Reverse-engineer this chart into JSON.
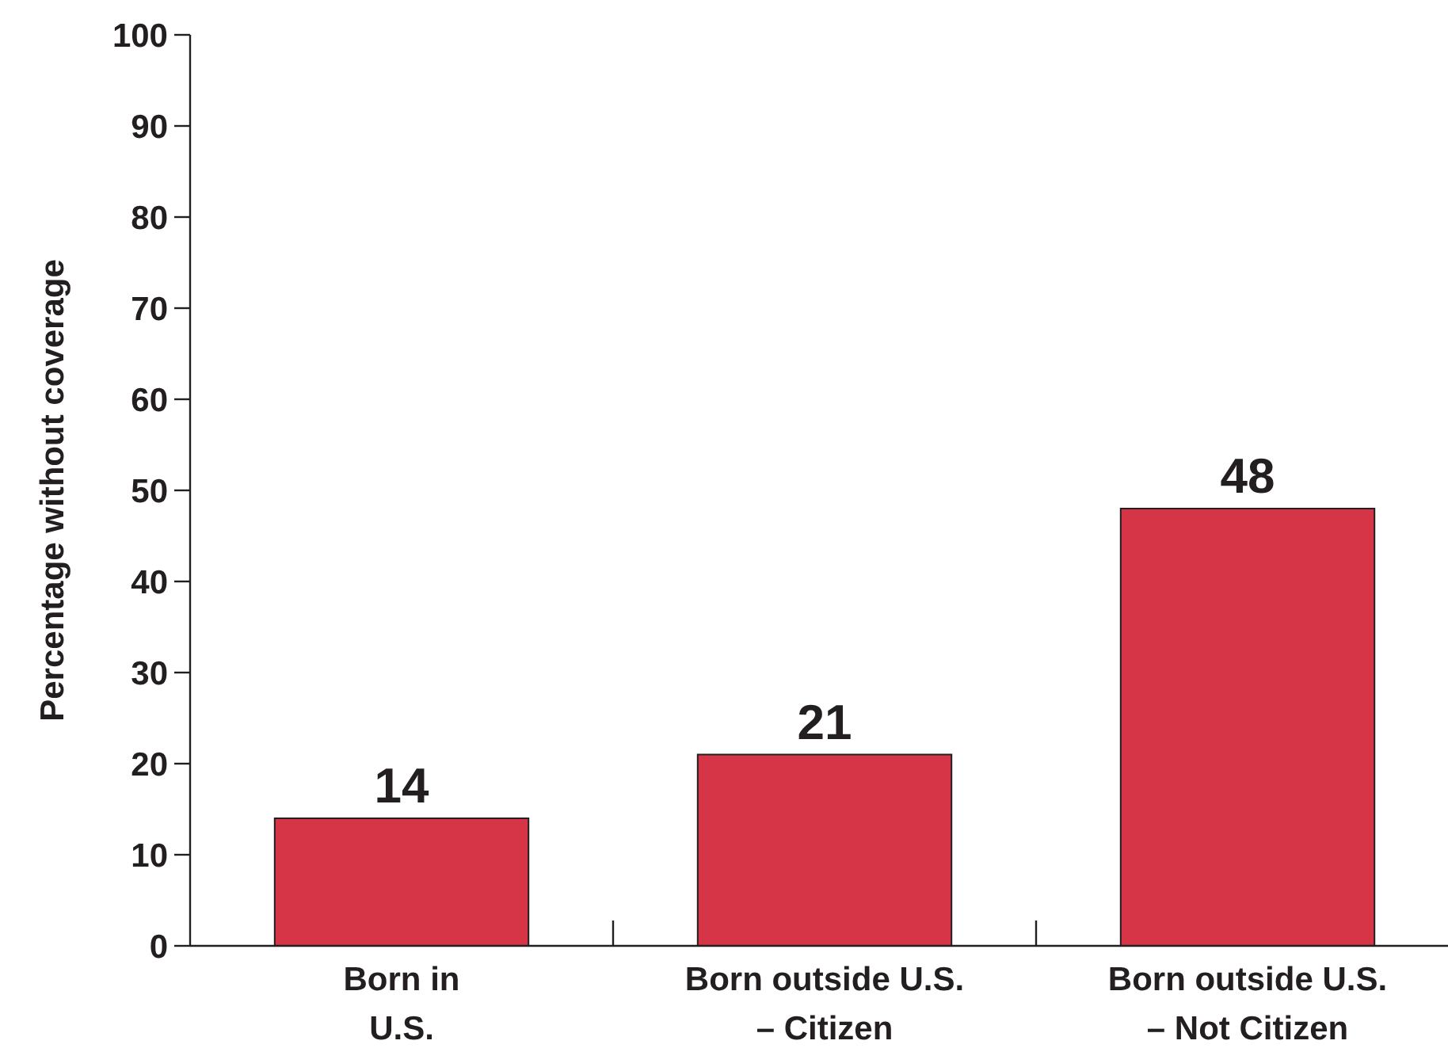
{
  "chart_data": {
    "type": "bar",
    "ylabel": "Percentage without coverage",
    "categories": [
      "Born in\nU.S.",
      "Born outside U.S.\n– Citizen",
      "Born outside U.S.\n– Not Citizen"
    ],
    "values": [
      14,
      21,
      48
    ],
    "color": "#d63447",
    "ylim": [
      0,
      100
    ],
    "yticks": [
      0,
      10,
      20,
      30,
      40,
      50,
      60,
      70,
      80,
      90,
      100
    ],
    "data_labels": true
  }
}
